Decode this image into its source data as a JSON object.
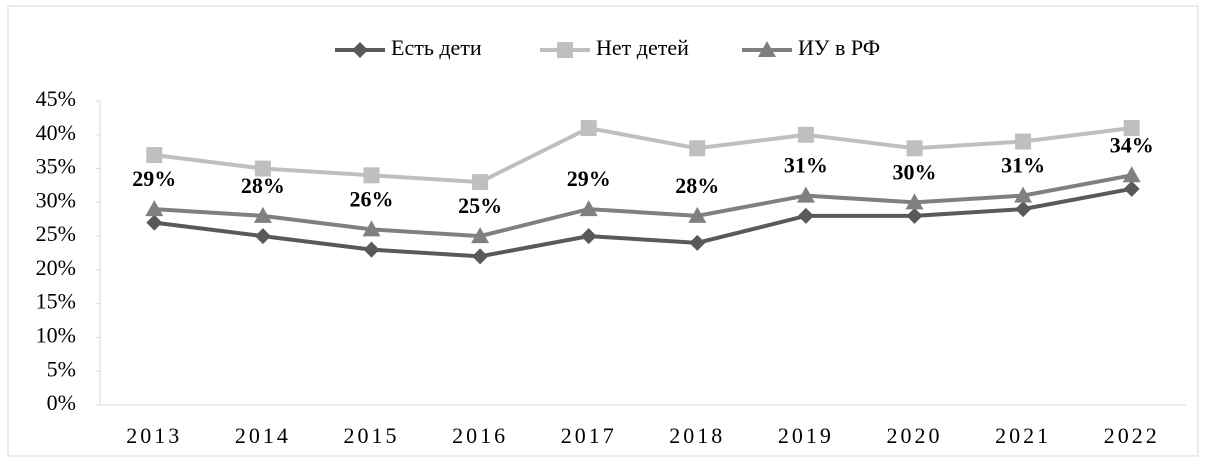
{
  "chart_data": {
    "type": "line",
    "categories": [
      "2013",
      "2014",
      "2015",
      "2016",
      "2017",
      "2018",
      "2019",
      "2020",
      "2021",
      "2022"
    ],
    "series": [
      {
        "name": "Есть дети",
        "color": "#595959",
        "marker": "diamond",
        "values": [
          27,
          25,
          23,
          22,
          25,
          24,
          28,
          28,
          29,
          32
        ]
      },
      {
        "name": "Нет детей",
        "color": "#bfbfbf",
        "marker": "square",
        "values": [
          37,
          35,
          34,
          33,
          41,
          38,
          40,
          38,
          39,
          41
        ]
      },
      {
        "name": "ИУ в РФ",
        "color": "#808080",
        "marker": "triangle",
        "values": [
          29,
          28,
          26,
          25,
          29,
          28,
          31,
          30,
          31,
          34
        ],
        "value_labels": [
          "29%",
          "28%",
          "26%",
          "25%",
          "29%",
          "28%",
          "31%",
          "30%",
          "31%",
          "34%"
        ]
      }
    ],
    "ylim": [
      0,
      45
    ],
    "yticks": [
      {
        "value": 0,
        "label": "0%"
      },
      {
        "value": 5,
        "label": "5%"
      },
      {
        "value": 10,
        "label": "10%"
      },
      {
        "value": 15,
        "label": "15%"
      },
      {
        "value": 20,
        "label": "20%"
      },
      {
        "value": 25,
        "label": "25%"
      },
      {
        "value": 30,
        "label": "30%"
      },
      {
        "value": 35,
        "label": "35%"
      },
      {
        "value": 40,
        "label": "40%"
      },
      {
        "value": 45,
        "label": "45%"
      }
    ],
    "legend": "top",
    "grid": false
  }
}
